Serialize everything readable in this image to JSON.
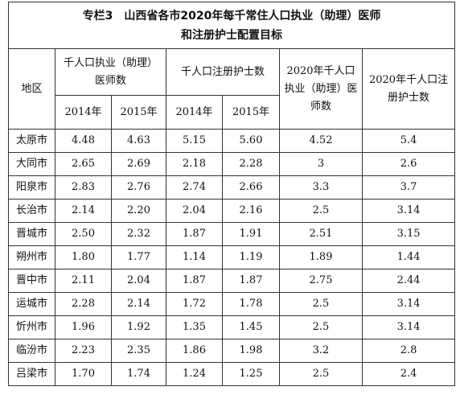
{
  "title": [
    "专栏3　山西省各市2020年每千常住人口执业（助理）医师",
    "和注册护士配置目标"
  ],
  "header": {
    "region": "地区",
    "groups": [
      "千人口执业（助理）医师数",
      "千人口注册护士数",
      "2020年千人口执业（助理）医师数",
      "2020年千人口注册护士数"
    ],
    "years": [
      "2014年",
      "2015年",
      "2014年",
      "2015年"
    ]
  },
  "table": {
    "rows": [
      [
        "太原市",
        "4.48",
        "4.63",
        "5.15",
        "5.60",
        "4.52",
        "5.4"
      ],
      [
        "大同市",
        "2.65",
        "2.69",
        "2.18",
        "2.28",
        "3",
        "2.6"
      ],
      [
        "阳泉市",
        "2.83",
        "2.76",
        "2.74",
        "2.66",
        "3.3",
        "3.7"
      ],
      [
        "长治市",
        "2.14",
        "2.20",
        "2.04",
        "2.16",
        "2.5",
        "3.14"
      ],
      [
        "晋城市",
        "2.50",
        "2.32",
        "1.87",
        "1.91",
        "2.51",
        "3.15"
      ],
      [
        "朔州市",
        "1.80",
        "1.77",
        "1.14",
        "1.19",
        "1.89",
        "1.44"
      ],
      [
        "晋中市",
        "2.11",
        "2.04",
        "1.87",
        "1.87",
        "2.75",
        "2.44"
      ],
      [
        "运城市",
        "2.28",
        "2.14",
        "1.72",
        "1.78",
        "2.5",
        "3.14"
      ],
      [
        "忻州市",
        "1.96",
        "1.92",
        "1.35",
        "1.45",
        "2.5",
        "3.14"
      ],
      [
        "临汾市",
        "2.23",
        "2.35",
        "1.86",
        "1.98",
        "3.2",
        "2.8"
      ],
      [
        "吕梁市",
        "1.70",
        "1.74",
        "1.24",
        "1.25",
        "2.5",
        "2.4"
      ]
    ]
  }
}
